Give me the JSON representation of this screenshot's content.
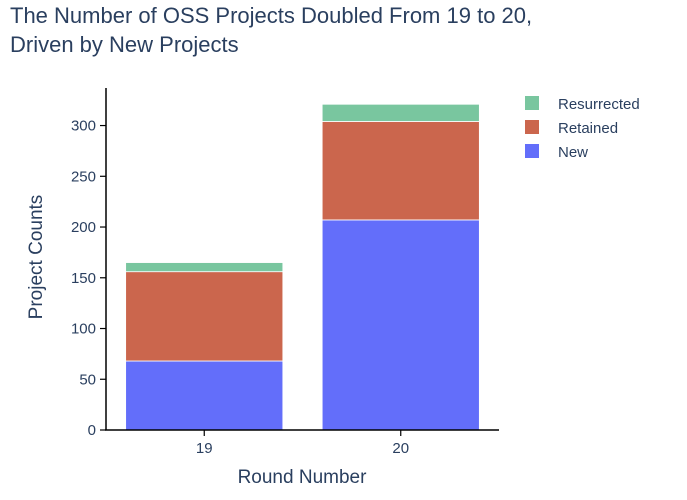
{
  "chart_data": {
    "type": "bar",
    "stacked": true,
    "title_lines": [
      "The Number of OSS Projects Doubled From 19 to 20,",
      "Driven by New Projects"
    ],
    "xlabel": "Round Number",
    "ylabel": "Project Counts",
    "categories": [
      "19",
      "20"
    ],
    "series": [
      {
        "name": "New",
        "values": [
          68,
          207
        ],
        "color": "#636efa"
      },
      {
        "name": "Retained",
        "values": [
          88,
          97
        ],
        "color": "#cb664d"
      },
      {
        "name": "Resurrected",
        "values": [
          9,
          17
        ],
        "color": "#79c69f"
      }
    ],
    "ylim": [
      0,
      337
    ],
    "yticks": [
      0,
      50,
      100,
      150,
      200,
      250,
      300
    ],
    "legend": {
      "position": "top-right",
      "order": [
        "Resurrected",
        "Retained",
        "New"
      ]
    },
    "grid": false
  }
}
